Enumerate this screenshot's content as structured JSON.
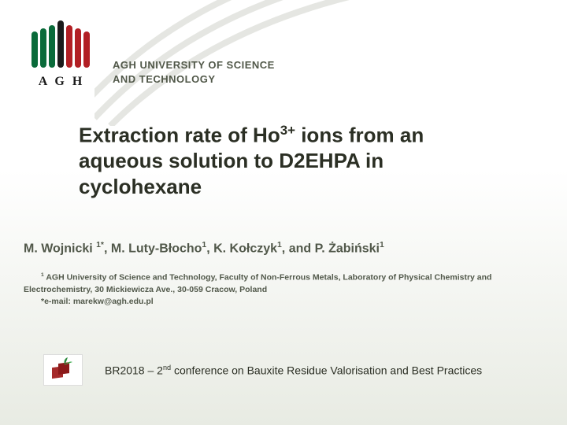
{
  "logo": {
    "acronym": "A G H",
    "bar_colors": [
      "#0a6b3a",
      "#0a6b3a",
      "#0a6b3a",
      "#1b1b1b",
      "#b21f24",
      "#b21f24",
      "#b21f24"
    ],
    "text_color": "#1b1b1b"
  },
  "university": {
    "line1": "AGH UNIVERSITY OF SCIENCE",
    "line2": "AND TECHNOLOGY",
    "color": "#515849"
  },
  "title": {
    "pre": "Extraction rate of Ho",
    "sup": "3+",
    "post": " ions from an aqueous solution to D2EHPA in cyclohexane",
    "color": "#2b2f24",
    "fontsize": 26
  },
  "authors": {
    "text_parts": [
      {
        "t": "M. Wojnicki ",
        "sup": "1*"
      },
      {
        "t": ", M. Luty-Błocho",
        "sup": "1"
      },
      {
        "t": ", K. Kołczyk",
        "sup": "1"
      },
      {
        "t": ", and P. Żabiński",
        "sup": "1"
      }
    ],
    "color": "#51584a",
    "fontsize": 16
  },
  "affiliation": {
    "sup": "1",
    "line1": " AGH University of Science and Technology, Faculty of Non-Ferrous Metals, Laboratory of Physical Chemistry and",
    "line2": "Electrochemistry, 30 Mickiewicza Ave., 30-059 Cracow, Poland",
    "email": "*e-mail: marekw@agh.edu.pl",
    "color": "#51584a",
    "fontsize": 10.5
  },
  "conference": {
    "pre": "BR2018 – 2",
    "sup": "nd",
    "post": " conference on Bauxite Residue Valorisation and Best Practices",
    "icon_colors": {
      "box": "#a52a2a",
      "leaf": "#2e8b3e"
    },
    "color": "#2b2f24",
    "fontsize": 14
  },
  "background": {
    "top": "#ffffff",
    "bottom": "#e8ebe3",
    "curve_color": "#9aa08f"
  }
}
